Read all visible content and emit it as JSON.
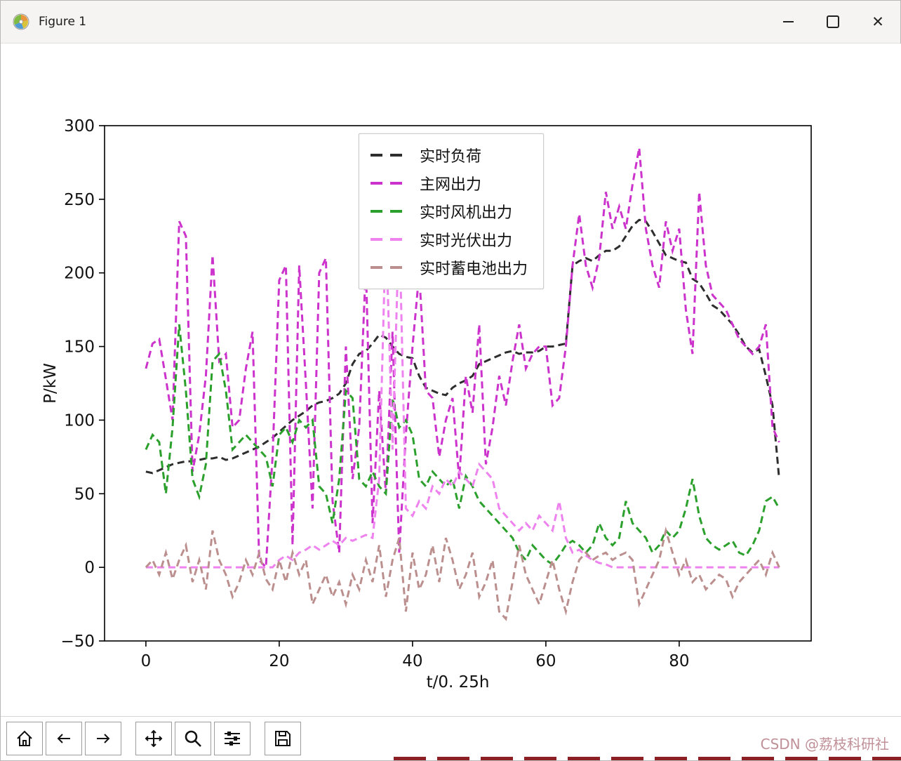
{
  "titlebar": {
    "title": "Figure 1",
    "buttons": [
      "minimize",
      "maximize",
      "close"
    ],
    "close_glyph": "✕"
  },
  "toolbar": {
    "buttons": [
      "home",
      "back",
      "forward",
      "pan",
      "zoom",
      "configure-subplots",
      "save"
    ],
    "watermark": "CSDN @荔枝科研社"
  },
  "chart_data": {
    "type": "line",
    "x_start": 0,
    "x_step": 1,
    "n_points": 96,
    "xlabel": "t/0. 25h",
    "ylabel": "P/kW",
    "xlim": [
      -6.2,
      99.8
    ],
    "ylim": [
      -50,
      300
    ],
    "xticks": [
      0,
      20,
      40,
      60,
      80
    ],
    "yticks": [
      -50,
      0,
      50,
      100,
      150,
      200,
      250,
      300
    ],
    "grid": false,
    "legend_position": "upper-center-left",
    "line_style": "dashed",
    "series": [
      {
        "name": "实时负荷",
        "color": "#2E2E2E",
        "values": [
          65,
          64,
          66,
          68,
          70,
          71,
          72,
          72,
          73,
          74,
          74,
          75,
          73,
          74,
          76,
          78,
          80,
          82,
          85,
          88,
          92,
          96,
          100,
          103,
          106,
          110,
          112,
          113,
          115,
          118,
          125,
          138,
          145,
          147,
          152,
          158,
          156,
          150,
          145,
          143,
          142,
          130,
          122,
          120,
          118,
          117,
          122,
          125,
          127,
          130,
          138,
          140,
          142,
          144,
          146,
          147,
          145,
          146,
          146,
          147,
          150,
          150,
          151,
          152,
          205,
          208,
          210,
          208,
          212,
          215,
          215,
          218,
          225,
          232,
          236,
          235,
          228,
          220,
          212,
          210,
          208,
          207,
          196,
          193,
          186,
          178,
          175,
          170,
          165,
          158,
          150,
          146,
          148,
          130,
          110,
          60
        ]
      },
      {
        "name": "主网出力",
        "color": "#CC33CC",
        "values": [
          135,
          152,
          155,
          128,
          100,
          235,
          225,
          65,
          90,
          130,
          212,
          140,
          145,
          95,
          100,
          135,
          160,
          5,
          0,
          75,
          195,
          205,
          15,
          205,
          125,
          40,
          200,
          210,
          45,
          10,
          150,
          60,
          95,
          205,
          30,
          120,
          50,
          160,
          10,
          90,
          150,
          200,
          120,
          115,
          75,
          100,
          115,
          60,
          130,
          105,
          165,
          70,
          95,
          130,
          110,
          140,
          165,
          135,
          145,
          150,
          150,
          110,
          115,
          150,
          205,
          240,
          205,
          190,
          210,
          255,
          230,
          245,
          230,
          260,
          285,
          230,
          205,
          190,
          235,
          215,
          230,
          175,
          145,
          255,
          205,
          185,
          180,
          175,
          165,
          155,
          150,
          145,
          150,
          165,
          95,
          85
        ]
      },
      {
        "name": "实时风机出力",
        "color": "#2CA02C",
        "values": [
          80,
          90,
          85,
          50,
          95,
          165,
          120,
          60,
          48,
          70,
          140,
          145,
          120,
          80,
          85,
          90,
          85,
          80,
          75,
          55,
          90,
          95,
          85,
          100,
          95,
          100,
          55,
          50,
          30,
          60,
          120,
          115,
          60,
          55,
          65,
          55,
          50,
          115,
          95,
          100,
          90,
          60,
          55,
          65,
          60,
          55,
          60,
          40,
          62,
          55,
          45,
          40,
          35,
          30,
          25,
          20,
          10,
          5,
          15,
          10,
          5,
          2,
          8,
          15,
          18,
          15,
          10,
          15,
          30,
          20,
          15,
          20,
          45,
          30,
          25,
          20,
          10,
          15,
          25,
          20,
          25,
          40,
          60,
          35,
          20,
          15,
          12,
          15,
          18,
          10,
          8,
          15,
          25,
          45,
          48,
          40
        ]
      },
      {
        "name": "实时光伏出力",
        "color": "#EE82EE",
        "values": [
          0,
          0,
          0,
          0,
          0,
          0,
          0,
          0,
          0,
          0,
          0,
          0,
          0,
          0,
          0,
          0,
          0,
          0,
          0,
          0,
          5,
          8,
          5,
          10,
          12,
          15,
          12,
          15,
          18,
          15,
          20,
          18,
          20,
          22,
          20,
          60,
          230,
          80,
          235,
          40,
          35,
          45,
          40,
          55,
          50,
          60,
          55,
          65,
          60,
          55,
          70,
          65,
          60,
          40,
          35,
          30,
          25,
          30,
          25,
          35,
          30,
          25,
          45,
          20,
          10,
          12,
          8,
          5,
          3,
          2,
          0,
          0,
          0,
          0,
          0,
          0,
          0,
          0,
          0,
          0,
          0,
          0,
          0,
          0,
          0,
          0,
          0,
          0,
          0,
          0,
          0,
          0,
          0,
          0,
          0,
          0
        ]
      },
      {
        "name": "实时蓄电池出力",
        "color": "#BC8F8F",
        "values": [
          0,
          5,
          -5,
          10,
          -8,
          5,
          15,
          -10,
          5,
          -15,
          25,
          5,
          -5,
          -20,
          -10,
          5,
          -5,
          10,
          -8,
          -15,
          5,
          -10,
          10,
          -5,
          5,
          -25,
          -15,
          -5,
          -20,
          -10,
          -25,
          -5,
          -15,
          5,
          -10,
          15,
          -20,
          5,
          20,
          -30,
          10,
          -15,
          -5,
          15,
          -10,
          20,
          5,
          -15,
          -5,
          10,
          -20,
          -10,
          5,
          -30,
          -35,
          -10,
          15,
          -5,
          -15,
          -25,
          -10,
          5,
          -15,
          -30,
          -10,
          5,
          10,
          5,
          8,
          10,
          5,
          8,
          10,
          5,
          -25,
          -15,
          -5,
          5,
          25,
          10,
          -5,
          5,
          -10,
          -5,
          -15,
          -10,
          -5,
          -8,
          -20,
          -10,
          -5,
          0,
          5,
          -5,
          10,
          0
        ]
      }
    ]
  }
}
